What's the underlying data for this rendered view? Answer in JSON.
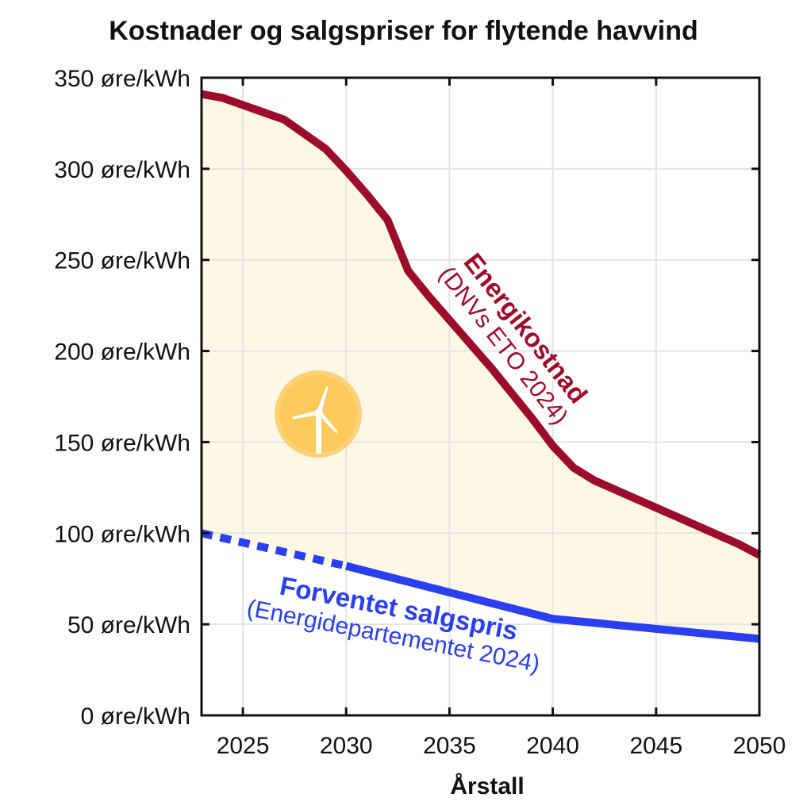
{
  "chart_data": {
    "type": "line",
    "title": "Kostnader og salgspriser for flytende havvind",
    "xlabel": "Årstall",
    "ylabel": "",
    "xlim": [
      2023,
      2050
    ],
    "ylim": [
      0,
      350
    ],
    "x_ticks": [
      "2025",
      "2030",
      "2035",
      "2040",
      "2045",
      "2050"
    ],
    "y_ticks": [
      "0 øre/kWh",
      "50 øre/kWh",
      "100 øre/kWh",
      "150 øre/kWh",
      "200 øre/kWh",
      "250 øre/kWh",
      "300 øre/kWh",
      "350 øre/kWh"
    ],
    "grid": true,
    "fill_between_series": true,
    "series": [
      {
        "name": "Energikostnad",
        "source": "(DNVs ETO 2024)",
        "color": "#9b0d2a",
        "x": [
          2023,
          2024,
          2025,
          2026,
          2027,
          2028,
          2029,
          2030,
          2031,
          2032,
          2033,
          2034,
          2035,
          2036,
          2037,
          2038,
          2039,
          2040,
          2041,
          2042,
          2043,
          2044,
          2045,
          2046,
          2047,
          2048,
          2049,
          2050
        ],
        "values": [
          341,
          339,
          335,
          331,
          327,
          319,
          311,
          299,
          286,
          272,
          244,
          230,
          217,
          204,
          191,
          177,
          163,
          148,
          136,
          129,
          124,
          119,
          114,
          109,
          104,
          99,
          94,
          88
        ]
      },
      {
        "name": "Forventet salgspris",
        "source": "(Energidepartementet 2024)",
        "color": "#2b3ff0",
        "dashed_until": 2030,
        "x": [
          2023,
          2030,
          2040,
          2050
        ],
        "values": [
          100,
          82,
          53,
          42
        ]
      }
    ],
    "fill_color": "#fdf8e6",
    "icon": "wind-turbine-icon",
    "icon_color": "#fbd27a"
  }
}
